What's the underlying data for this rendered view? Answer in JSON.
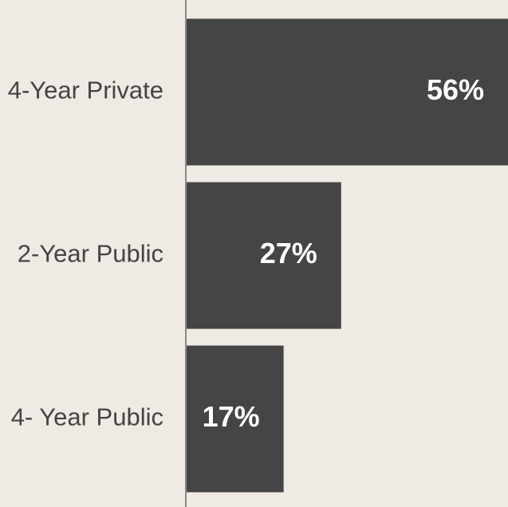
{
  "chart_data": {
    "type": "bar",
    "orientation": "horizontal",
    "categories": [
      "4-Year Private",
      "2-Year Public",
      "4- Year Public"
    ],
    "values": [
      56,
      27,
      17
    ],
    "value_labels": [
      "56%",
      "27%",
      "17%"
    ],
    "color": "#454545",
    "xlim": [
      0,
      56
    ]
  }
}
